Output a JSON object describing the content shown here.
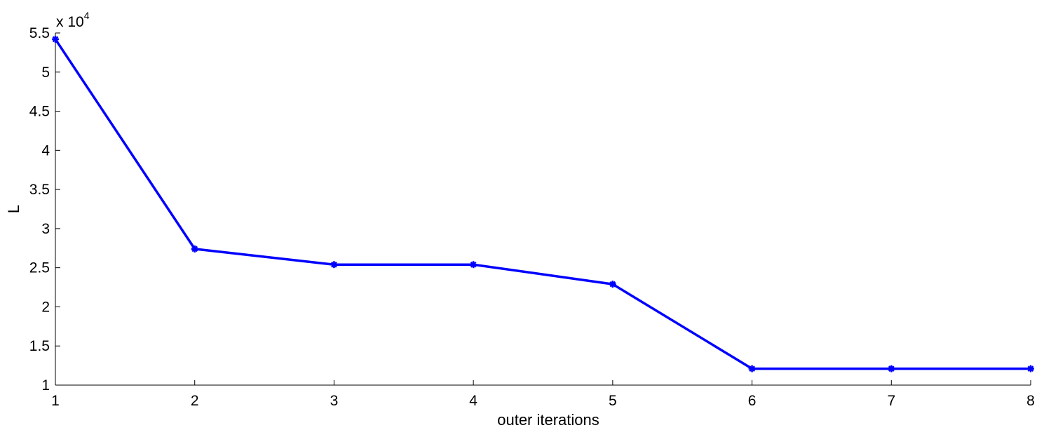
{
  "chart_data": {
    "type": "line",
    "title": "",
    "xlabel": "outer iterations",
    "ylabel": "L",
    "y_multiplier": {
      "base": "x 10",
      "exponent": "4"
    },
    "xlim": [
      1,
      8
    ],
    "ylim": [
      1,
      5.5
    ],
    "xticks": [
      "1",
      "2",
      "3",
      "4",
      "5",
      "6",
      "7",
      "8"
    ],
    "yticks": [
      "1",
      "1.5",
      "2",
      "2.5",
      "3",
      "3.5",
      "4",
      "4.5",
      "5",
      "5.5"
    ],
    "grid": false,
    "series": [
      {
        "color": "#0000ff",
        "marker": "*",
        "x": [
          1,
          2,
          3,
          4,
          5,
          6,
          7,
          8
        ],
        "y": [
          5.42,
          2.74,
          2.54,
          2.54,
          2.29,
          1.21,
          1.21,
          1.21
        ]
      }
    ]
  }
}
